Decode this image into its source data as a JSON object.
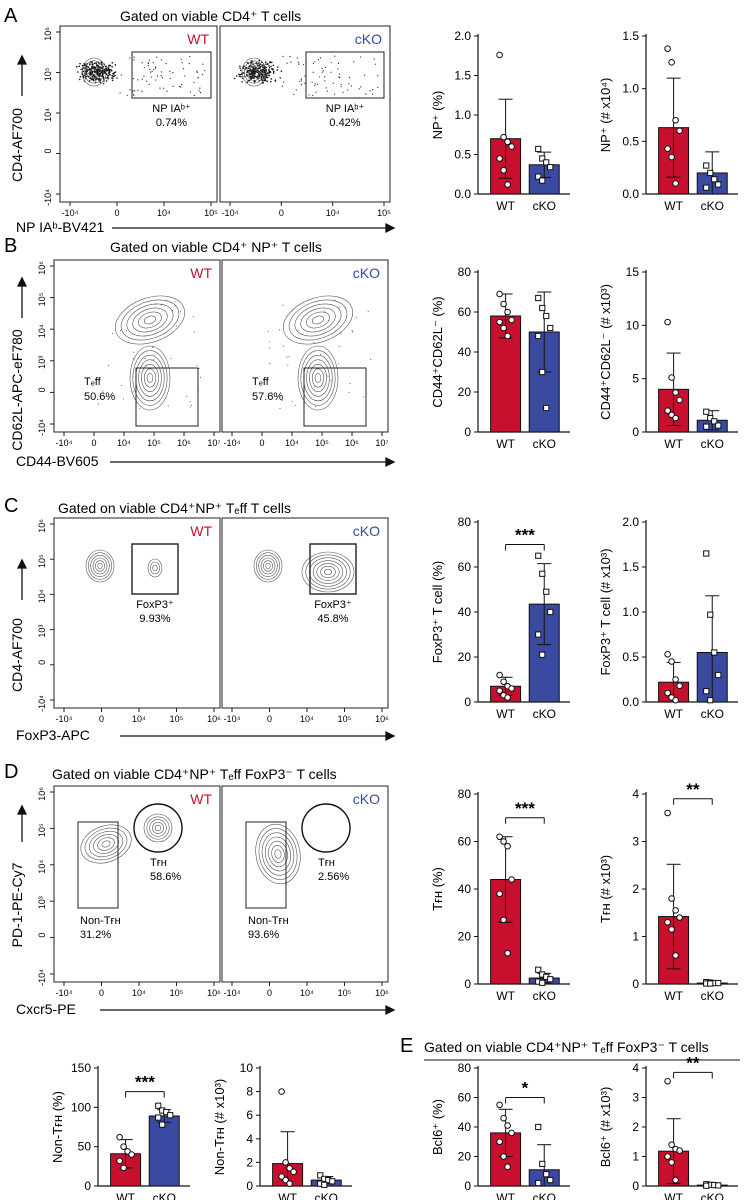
{
  "colors": {
    "wt": "#c8102e",
    "cko": "#3a4aa0",
    "axis": "#111111",
    "contour": "#555555"
  },
  "panels": {
    "A": {
      "letter": "A",
      "gate_title": "Gated on viable CD4⁺ T cells",
      "y_label": "CD4-AF700",
      "x_label": "NP IAᵇ-BV421",
      "flow": [
        {
          "group": "WT",
          "gate_name": "NP IAᵇ⁺",
          "percent": "0.74%"
        },
        {
          "group": "cKO",
          "gate_name": "NP IAᵇ⁺",
          "percent": "0.42%"
        }
      ]
    },
    "B": {
      "letter": "B",
      "gate_title": "Gated on viable CD4⁺ NP⁺ T cells",
      "y_label": "CD62L-APC-eF780",
      "x_label": "CD44-BV605",
      "flow": [
        {
          "group": "WT",
          "gate_name": "Tₑff",
          "percent": "50.6%"
        },
        {
          "group": "cKO",
          "gate_name": "Tₑff",
          "percent": "57.6%"
        }
      ]
    },
    "C": {
      "letter": "C",
      "gate_title": "Gated on viable CD4⁺NP⁺ Tₑff T cells",
      "y_label": "CD4-AF700",
      "x_label": "FoxP3-APC",
      "flow": [
        {
          "group": "WT",
          "gate_name": "FoxP3⁺",
          "percent": "9.93%"
        },
        {
          "group": "cKO",
          "gate_name": "FoxP3⁺",
          "percent": "45.8%"
        }
      ]
    },
    "D": {
      "letter": "D",
      "gate_title": "Gated on viable CD4⁺NP⁺ Tₑff FoxP3⁻ T cells",
      "y_label": "PD-1-PE-Cy7",
      "x_label": "Cxcr5-PE",
      "flow": [
        {
          "group": "WT",
          "gate1_name": "Non-Tғʜ",
          "gate1_percent": "31.2%",
          "gate2_name": "Tғʜ",
          "gate2_percent": "58.6%"
        },
        {
          "group": "cKO",
          "gate1_name": "Non-Tғʜ",
          "gate1_percent": "93.6%",
          "gate2_name": "Tғʜ",
          "gate2_percent": "2.56%"
        }
      ]
    },
    "E": {
      "letter": "E",
      "gate_title": "Gated on viable CD4⁺NP⁺ Tₑff FoxP3⁻ T cells"
    }
  },
  "flow_axis": {
    "A": {
      "x_ticks": [
        "-10⁴",
        "0",
        "10⁴",
        "10⁵"
      ],
      "y_ticks": [
        "10⁶",
        "10⁵",
        "10⁴",
        "0",
        "-10⁴"
      ]
    },
    "B": {
      "x_ticks": [
        "-10⁴",
        "0",
        "10⁴",
        "10⁵",
        "10⁶",
        "10⁷"
      ],
      "y_ticks": [
        "10⁶",
        "10⁵",
        "10⁴",
        "10³",
        "0",
        "-10⁴"
      ]
    },
    "C": {
      "x_ticks": [
        "-10⁴",
        "0",
        "10⁴",
        "10⁵",
        "10⁶"
      ],
      "y_ticks": [
        "10⁶",
        "10⁵",
        "10⁴",
        "10³",
        "0",
        "-10⁴"
      ]
    },
    "D": {
      "x_ticks": [
        "-10⁴",
        "0",
        "10⁴",
        "10⁵",
        "10⁶"
      ],
      "y_ticks": [
        "10⁶",
        "10⁵",
        "10⁴",
        "10³",
        "0",
        "-10⁴"
      ]
    }
  },
  "chart_data": [
    {
      "id": "A1",
      "type": "bar",
      "categories": [
        "WT",
        "cKO"
      ],
      "ylabel": "NP⁺ (%)",
      "ylim": [
        0,
        2.0
      ],
      "yticks": [
        "0.0",
        "0.5",
        "1.0",
        "1.5",
        "2.0"
      ],
      "values": [
        0.7,
        0.37
      ],
      "errors": [
        0.5,
        0.16
      ],
      "points": [
        [
          1.76,
          0.72,
          0.66,
          0.6,
          0.45,
          0.3,
          0.12
        ],
        [
          0.57,
          0.45,
          0.4,
          0.34,
          0.22,
          0.17
        ]
      ]
    },
    {
      "id": "A2",
      "type": "bar",
      "categories": [
        "WT",
        "cKO"
      ],
      "ylabel": "NP⁺ (# x10⁴)",
      "ylim": [
        0,
        1.5
      ],
      "yticks": [
        "0.0",
        "0.5",
        "1.0",
        "1.5"
      ],
      "values": [
        0.63,
        0.2
      ],
      "errors": [
        0.47,
        0.2
      ],
      "points": [
        [
          1.38,
          1.25,
          0.7,
          0.6,
          0.43,
          0.35,
          0.1
        ],
        [
          0.27,
          0.2,
          0.14,
          0.09,
          0.06
        ]
      ]
    },
    {
      "id": "B1",
      "type": "bar",
      "categories": [
        "WT",
        "cKO"
      ],
      "ylabel": "CD44⁺CD62L⁻ (%)",
      "ylim": [
        0,
        80
      ],
      "yticks": [
        "0",
        "20",
        "40",
        "60",
        "80"
      ],
      "values": [
        58,
        50
      ],
      "errors": [
        11,
        20
      ],
      "points": [
        [
          69,
          64,
          60,
          56,
          55,
          52,
          48
        ],
        [
          67,
          62,
          58,
          52,
          48,
          30,
          12
        ]
      ]
    },
    {
      "id": "B2",
      "type": "bar",
      "categories": [
        "WT",
        "cKO"
      ],
      "ylabel": "CD44⁺CD62L⁻ (# x10³)",
      "ylim": [
        0,
        15
      ],
      "yticks": [
        "0",
        "5",
        "10",
        "15"
      ],
      "values": [
        4.0,
        1.1
      ],
      "errors": [
        3.4,
        0.9
      ],
      "points": [
        [
          10.3,
          5.1,
          3.7,
          3.0,
          2.0,
          1.6,
          1.3
        ],
        [
          1.9,
          1.3,
          1.0,
          0.6,
          0.5
        ]
      ]
    },
    {
      "id": "C1",
      "type": "bar",
      "categories": [
        "WT",
        "cKO"
      ],
      "ylabel": "FoxP3⁺ T cell (%)",
      "ylim": [
        0,
        80
      ],
      "yticks": [
        "0",
        "20",
        "40",
        "60",
        "80"
      ],
      "values": [
        7,
        43.5
      ],
      "errors": [
        4,
        18
      ],
      "significance": "***",
      "points": [
        [
          12,
          9,
          7,
          6,
          5,
          3,
          2
        ],
        [
          65,
          57,
          49,
          40,
          30,
          21
        ]
      ]
    },
    {
      "id": "C2",
      "type": "bar",
      "categories": [
        "WT",
        "cKO"
      ],
      "ylabel": "FoxP3⁺ T cell (# x10³)",
      "ylim": [
        0,
        2.0
      ],
      "yticks": [
        "0.0",
        "0.5",
        "1.0",
        "1.5",
        "2.0"
      ],
      "values": [
        0.22,
        0.55
      ],
      "errors": [
        0.22,
        0.63
      ],
      "points": [
        [
          0.53,
          0.45,
          0.25,
          0.18,
          0.1,
          0.05,
          0.02
        ],
        [
          1.65,
          0.97,
          0.55,
          0.3,
          0.12,
          0.02
        ]
      ]
    },
    {
      "id": "D1",
      "type": "bar",
      "categories": [
        "WT",
        "cKO"
      ],
      "ylabel": "Tғʜ (%)",
      "ylim": [
        0,
        80
      ],
      "yticks": [
        "0",
        "20",
        "40",
        "60",
        "80"
      ],
      "values": [
        44,
        2.5
      ],
      "errors": [
        18,
        2
      ],
      "significance": "***",
      "points": [
        [
          62,
          60,
          58,
          44,
          38,
          27,
          13
        ],
        [
          6,
          4,
          3,
          2,
          1,
          0.5
        ]
      ]
    },
    {
      "id": "D2",
      "type": "bar",
      "categories": [
        "WT",
        "cKO"
      ],
      "ylabel": "Tғʜ (# x10³)",
      "ylim": [
        0,
        4
      ],
      "yticks": [
        "0",
        "1",
        "2",
        "3",
        "4"
      ],
      "values": [
        1.42,
        0.02
      ],
      "errors": [
        1.1,
        0.02
      ],
      "significance": "**",
      "points": [
        [
          3.6,
          1.8,
          1.55,
          1.4,
          1.3,
          1.15,
          0.6
        ],
        [
          0.04,
          0.03,
          0.02,
          0.02,
          0.01,
          0.01
        ]
      ]
    },
    {
      "id": "D3",
      "type": "bar",
      "categories": [
        "WT",
        "cKO"
      ],
      "ylabel": "Non-Tғʜ (%)",
      "ylim": [
        0,
        150
      ],
      "yticks": [
        "0",
        "50",
        "100",
        "150"
      ],
      "values": [
        41,
        89
      ],
      "errors": [
        18,
        8
      ],
      "significance": "***",
      "points": [
        [
          62,
          50,
          44,
          40,
          32,
          23
        ],
        [
          102,
          96,
          94,
          90,
          87,
          78
        ]
      ]
    },
    {
      "id": "D4",
      "type": "bar",
      "categories": [
        "WT",
        "cKO"
      ],
      "ylabel": "Non-Tғʜ (# x10³)",
      "ylim": [
        0,
        10
      ],
      "yticks": [
        "0",
        "2",
        "4",
        "6",
        "8",
        "10"
      ],
      "values": [
        1.9,
        0.5
      ],
      "errors": [
        2.7,
        0.3
      ],
      "points": [
        [
          8.0,
          2.0,
          1.5,
          1.2,
          0.8,
          0.5,
          0.2
        ],
        [
          0.9,
          0.6,
          0.5,
          0.4,
          0.2,
          0.1
        ]
      ]
    },
    {
      "id": "E1",
      "type": "bar",
      "categories": [
        "WT",
        "cKO"
      ],
      "ylabel": "Bcl6⁺ (%)",
      "ylim": [
        0,
        80
      ],
      "yticks": [
        "0",
        "20",
        "40",
        "60",
        "80"
      ],
      "values": [
        36,
        11
      ],
      "errors": [
        16,
        17
      ],
      "significance": "*",
      "points": [
        [
          55,
          46,
          41,
          36,
          30,
          20,
          13
        ],
        [
          40,
          15,
          8,
          4,
          2
        ]
      ]
    },
    {
      "id": "E2",
      "type": "bar",
      "categories": [
        "WT",
        "cKO"
      ],
      "ylabel": "Bcl6⁺ (# x10³)",
      "ylim": [
        0,
        4
      ],
      "yticks": [
        "0",
        "1",
        "2",
        "3",
        "4"
      ],
      "values": [
        1.18,
        0.03
      ],
      "errors": [
        1.1,
        0.03
      ],
      "significance": "**",
      "points": [
        [
          3.55,
          1.4,
          1.25,
          1.2,
          1.0,
          0.8,
          0.2
        ],
        [
          0.06,
          0.04,
          0.03,
          0.02,
          0.01
        ]
      ]
    }
  ]
}
